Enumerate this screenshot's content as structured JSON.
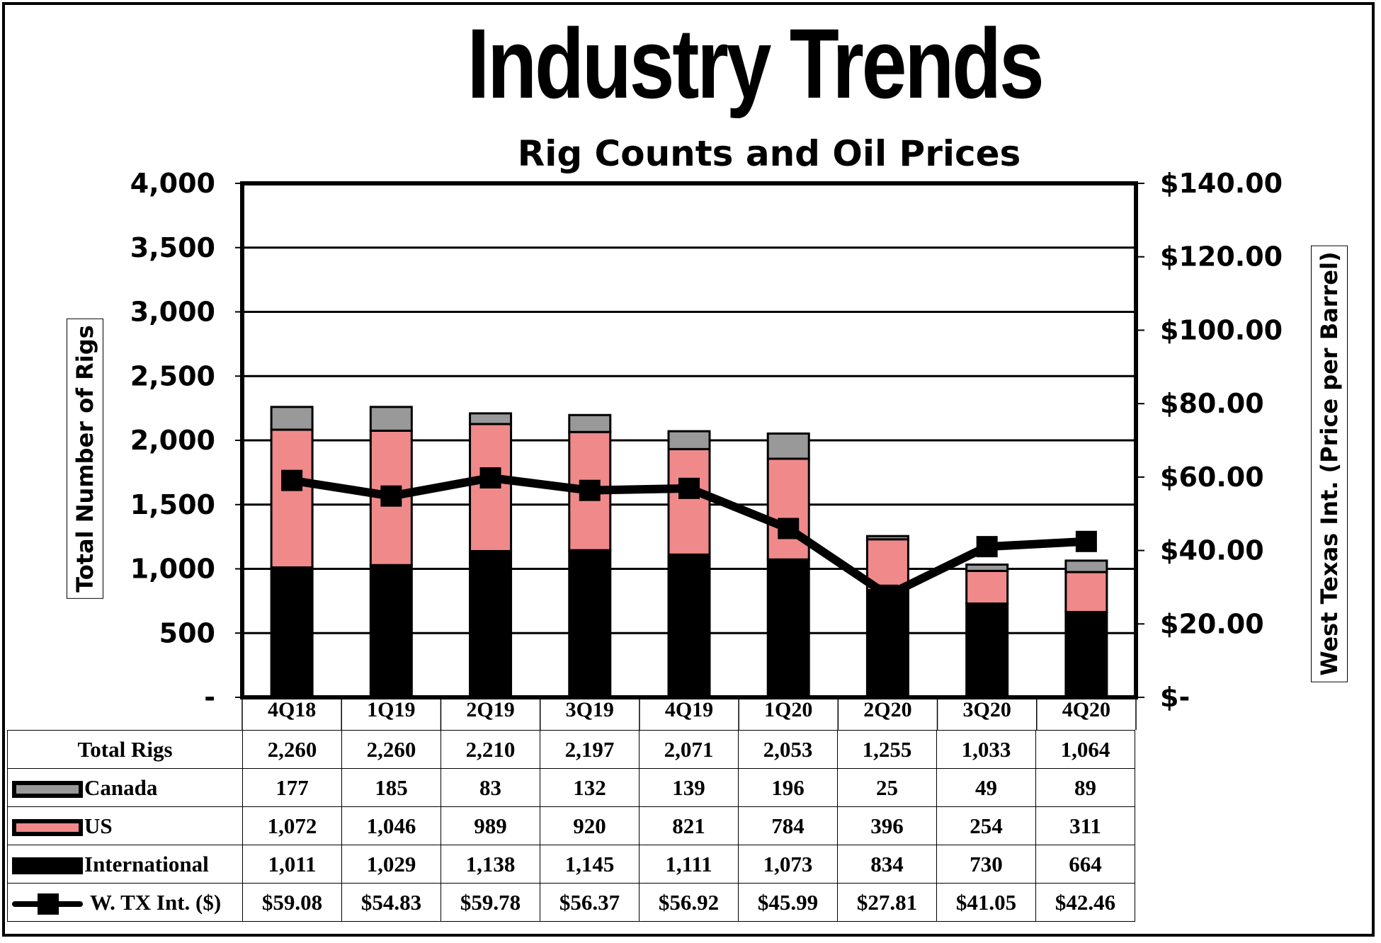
{
  "chart_data": {
    "type": "bar",
    "stacked": true,
    "title": "Industry Trends",
    "subtitle": "Rig Counts and Oil Prices",
    "ylabel": "Total Number of Rigs",
    "y2label": "West Texas Int. (Price per Barrel)",
    "ylim": [
      0,
      4000
    ],
    "y2lim": [
      0,
      140
    ],
    "yticks": [
      "-",
      "500",
      "1,000",
      "1,500",
      "2,000",
      "2,500",
      "3,000",
      "3,500",
      "4,000"
    ],
    "y2ticks": [
      "$-",
      "$20.00",
      "$40.00",
      "$60.00",
      "$80.00",
      "$100.00",
      "$120.00",
      "$140.00"
    ],
    "grid": true,
    "categories": [
      "4Q18",
      "1Q19",
      "2Q19",
      "3Q19",
      "4Q19",
      "1Q20",
      "2Q20",
      "3Q20",
      "4Q20"
    ],
    "series": [
      {
        "name": "International",
        "type": "bar",
        "color": "#000000",
        "values": [
          1011,
          1029,
          1138,
          1145,
          1111,
          1073,
          834,
          730,
          664
        ],
        "labels": [
          "1,011",
          "1,029",
          "1,138",
          "1,145",
          "1,111",
          "1,073",
          "834",
          "730",
          "664"
        ]
      },
      {
        "name": "US",
        "type": "bar",
        "color": "#f08a8a",
        "values": [
          1072,
          1046,
          989,
          920,
          821,
          784,
          396,
          254,
          311
        ],
        "labels": [
          "1,072",
          "1,046",
          "989",
          "920",
          "821",
          "784",
          "396",
          "254",
          "311"
        ]
      },
      {
        "name": "Canada",
        "type": "bar",
        "color": "#999999",
        "values": [
          177,
          185,
          83,
          132,
          139,
          196,
          25,
          49,
          89
        ],
        "labels": [
          "177",
          "185",
          "83",
          "132",
          "139",
          "196",
          "25",
          "49",
          "89"
        ]
      },
      {
        "name": "W. TX Int. ($)",
        "type": "line",
        "axis": "right",
        "color": "#000000",
        "values": [
          59.08,
          54.83,
          59.78,
          56.37,
          56.92,
          45.99,
          27.81,
          41.05,
          42.46
        ],
        "labels": [
          "$59.08",
          "$54.83",
          "$59.78",
          "$56.37",
          "$56.92",
          "$45.99",
          "$27.81",
          "$41.05",
          "$42.46"
        ]
      }
    ],
    "totals": {
      "name": "Total Rigs",
      "values": [
        2260,
        2260,
        2210,
        2197,
        2071,
        2053,
        1255,
        1033,
        1064
      ],
      "labels": [
        "2,260",
        "2,260",
        "2,210",
        "2,197",
        "2,071",
        "2,053",
        "1,255",
        "1,033",
        "1,064"
      ]
    }
  }
}
